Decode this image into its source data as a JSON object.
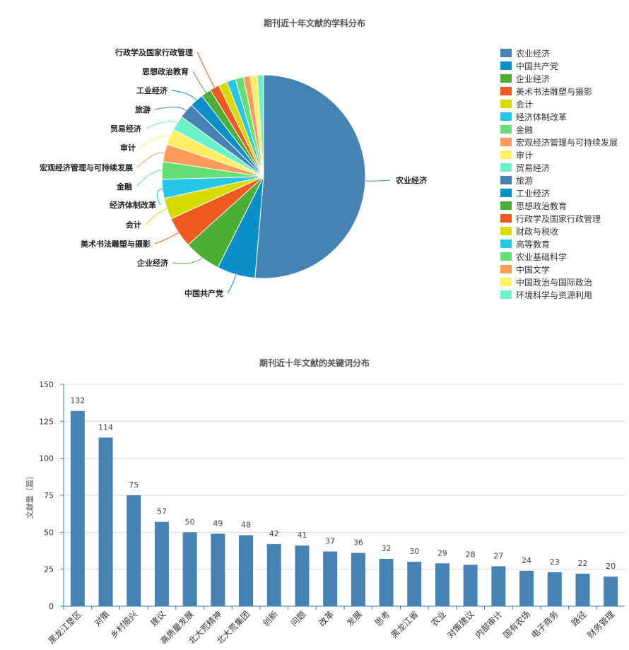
{
  "charts": {
    "pie": {
      "title": "期刊近十年文献的学科分布"
    },
    "bar": {
      "title": "期刊近十年文献的关键词分布"
    }
  },
  "colors": {
    "bar": "#4682b4",
    "axis": "#2f7fb8",
    "grid": "#d9d9d9",
    "pie_palette": [
      "#4682b4",
      "#0a8fc8",
      "#4cae34",
      "#ee5a1f",
      "#d7dc00",
      "#27c6e6",
      "#65df75",
      "#ff9b5a",
      "#ffef62",
      "#6bf2c8",
      "#4682b4",
      "#0a8fc8",
      "#4cae34",
      "#ee5a1f",
      "#d7dc00",
      "#27c6e6",
      "#65df75",
      "#ff9b5a",
      "#ffef62",
      "#6bf2c8"
    ]
  },
  "chart_data": [
    {
      "type": "pie",
      "title": "期刊近十年文献的学科分布",
      "legend_position": "right",
      "labels": [
        "农业经济",
        "中国共产党",
        "企业经济",
        "美术书法雕塑与摄影",
        "会计",
        "经济体制改革",
        "金融",
        "宏观经济管理与可持续发展",
        "审计",
        "贸易经济",
        "旅游",
        "工业经济",
        "思想政治教育",
        "行政学及国家行政管理",
        "财政与税收",
        "高等教育",
        "农业基础科学",
        "中国文学",
        "中国政治与国际政治",
        "环境科学与资源利用"
      ],
      "values": [
        51.5,
        6.1,
        5.9,
        4.9,
        3.4,
        3.0,
        2.8,
        2.8,
        2.5,
        2.4,
        2.4,
        2.2,
        1.6,
        1.5,
        1.4,
        1.4,
        1.3,
        1.1,
        1.1,
        1.0
      ],
      "outside_labels": [
        "农业经济",
        "中国共产党",
        "企业经济",
        "美术书法雕塑与摄影",
        "会计",
        "经济体制改革",
        "金融",
        "宏观经济管理与可持续发展",
        "审计",
        "贸易经济",
        "旅游",
        "工业经济",
        "思想政治教育",
        "行政学及国家行政管理"
      ]
    },
    {
      "type": "bar",
      "title": "期刊近十年文献的关键词分布",
      "ylabel": "文献量（篇）",
      "ylim": [
        0,
        150
      ],
      "yticks": [
        0,
        25,
        50,
        75,
        100,
        125,
        150
      ],
      "grid": true,
      "categories": [
        "黑龙江垦区",
        "对策",
        "乡村振兴",
        "建议",
        "高质量发展",
        "北大荒精神",
        "北大荒集团",
        "创新",
        "问题",
        "改革",
        "发展",
        "思考",
        "黑龙江省",
        "农业",
        "对策建议",
        "内部审计",
        "国有农场",
        "电子商务",
        "路径",
        "财务管理"
      ],
      "values": [
        132,
        114,
        75,
        57,
        50,
        49,
        48,
        42,
        41,
        37,
        36,
        32,
        30,
        29,
        28,
        27,
        24,
        23,
        22,
        20
      ]
    }
  ]
}
